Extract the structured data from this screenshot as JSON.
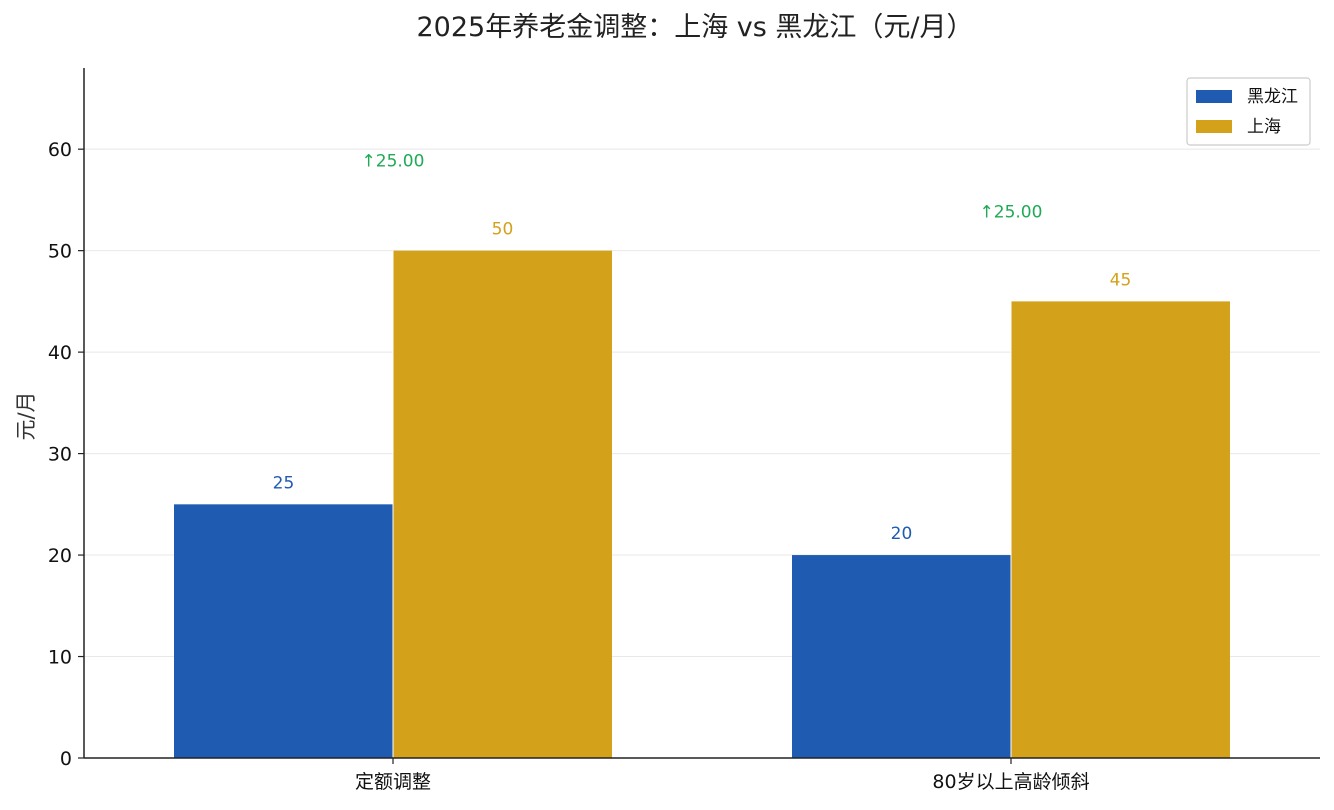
{
  "chart_data": {
    "type": "bar",
    "title": "2025年养老金调整：上海 vs 黑龙江（元/月）",
    "xlabel": "",
    "ylabel": "元/月",
    "categories": [
      "定额调整",
      "80岁以上高龄倾斜"
    ],
    "series": [
      {
        "name": "黑龙江",
        "values": [
          25,
          20
        ],
        "color": "#1f5bb0"
      },
      {
        "name": "上海",
        "values": [
          50,
          45
        ],
        "color": "#d4a11a"
      }
    ],
    "value_labels": {
      "黑龙江": [
        "25",
        "20"
      ],
      "上海": [
        "50",
        "45"
      ]
    },
    "difference_annotations": [
      "↑25.00",
      "↑25.00"
    ],
    "difference_color": "#1faa55",
    "ylim": [
      0,
      68
    ],
    "yticks": [
      0,
      10,
      20,
      30,
      40,
      50,
      60
    ],
    "grid": true,
    "legend_position": "top-right"
  }
}
